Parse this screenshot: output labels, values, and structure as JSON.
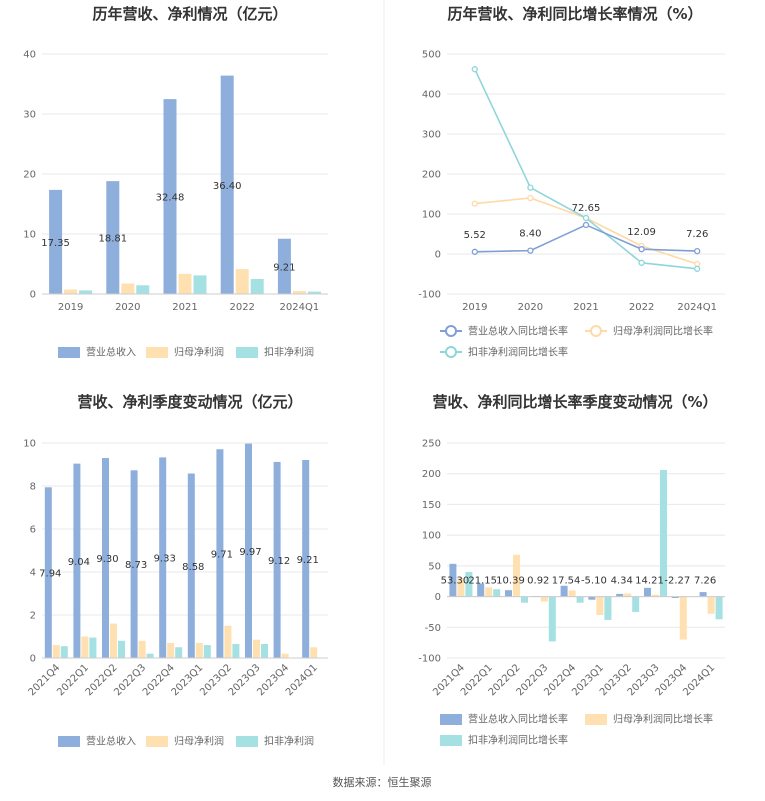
{
  "colors": {
    "revenue": "#8EAEDC",
    "net_profit": "#FFE0B0",
    "deducted_profit": "#A5E0E2",
    "line_revenue": "#7F9FD6",
    "line_net_profit": "#FFD9A6",
    "line_deducted": "#8ED6DC",
    "grid": "#E8E8E8",
    "divider": "#E6E6E6"
  },
  "source": "数据来源：恒生聚源",
  "chart_data": [
    {
      "type": "bar",
      "title": "历年营收、净利情况（亿元）",
      "categories": [
        "2019",
        "2020",
        "2021",
        "2022",
        "2024Q1"
      ],
      "ylim": [
        0,
        40
      ],
      "yticks": [
        0,
        10,
        20,
        30,
        40
      ],
      "series": [
        {
          "name": "营业总收入",
          "values": [
            17.35,
            18.81,
            32.48,
            36.4,
            9.21
          ],
          "labels": [
            "17.35",
            "18.81",
            "32.48",
            "36.40",
            "9.21"
          ]
        },
        {
          "name": "归母净利润",
          "values": [
            0.75,
            1.75,
            3.35,
            4.15,
            0.5
          ]
        },
        {
          "name": "扣非净利润",
          "values": [
            0.6,
            1.45,
            3.1,
            2.5,
            0.4
          ]
        }
      ],
      "legend": "bottom"
    },
    {
      "type": "line",
      "title": "历年营收、净利同比增长率情况（%）",
      "categories": [
        "2019",
        "2020",
        "2021",
        "2022",
        "2024Q1"
      ],
      "ylim": [
        -100,
        500
      ],
      "yticks": [
        -100,
        0,
        100,
        200,
        300,
        400,
        500
      ],
      "series": [
        {
          "name": "营业总收入同比增长率",
          "values": [
            5.52,
            8.4,
            72.65,
            12.09,
            7.26
          ],
          "labels": [
            "5.52",
            "8.40",
            "72.65",
            "12.09",
            "7.26"
          ]
        },
        {
          "name": "归母净利润同比增长率",
          "values": [
            126,
            140,
            90,
            20,
            -25
          ]
        },
        {
          "name": "扣非净利润同比增长率",
          "values": [
            462,
            166,
            90,
            -22,
            -37
          ]
        }
      ],
      "legend": "bottom"
    },
    {
      "type": "bar",
      "title": "营收、净利季度变动情况（亿元）",
      "categories": [
        "2021Q4",
        "2022Q1",
        "2022Q2",
        "2022Q3",
        "2022Q4",
        "2023Q1",
        "2023Q2",
        "2023Q3",
        "2023Q4",
        "2024Q1"
      ],
      "ylim": [
        0,
        10
      ],
      "yticks": [
        0,
        2,
        4,
        6,
        8,
        10
      ],
      "series": [
        {
          "name": "营业总收入",
          "values": [
            7.94,
            9.04,
            9.3,
            8.73,
            9.33,
            8.58,
            9.71,
            9.97,
            9.12,
            9.21
          ],
          "labels": [
            "7.94",
            "9.04",
            "9.30",
            "8.73",
            "9.33",
            "8.58",
            "9.71",
            "9.97",
            "9.12",
            "9.21"
          ]
        },
        {
          "name": "归母净利润",
          "values": [
            0.6,
            1.0,
            1.6,
            0.8,
            0.7,
            0.7,
            1.5,
            0.85,
            0.2,
            0.5
          ]
        },
        {
          "name": "扣非净利润",
          "values": [
            0.55,
            0.95,
            0.8,
            0.2,
            0.5,
            0.6,
            0.65,
            0.65,
            0.0,
            0.0
          ]
        }
      ],
      "legend": "bottom"
    },
    {
      "type": "bar",
      "title": "营收、净利同比增长率季度变动情况（%）",
      "categories": [
        "2021Q4",
        "2022Q1",
        "2022Q2",
        "2022Q3",
        "2022Q4",
        "2023Q1",
        "2023Q2",
        "2023Q3",
        "2023Q4",
        "2024Q1"
      ],
      "ylim": [
        -100,
        250
      ],
      "yticks": [
        -100,
        -50,
        0,
        50,
        100,
        150,
        200,
        250
      ],
      "series": [
        {
          "name": "营业总收入同比增长率",
          "values": [
            53.3,
            21.15,
            10.39,
            0.92,
            17.54,
            -5.1,
            4.34,
            14.21,
            -2.27,
            7.26
          ],
          "labels": [
            "53.30",
            "21.15",
            "10.39",
            "0.92",
            "17.54",
            "-5.10",
            "4.34",
            "14.21",
            "-2.27",
            "7.26"
          ]
        },
        {
          "name": "归母净利润同比增长率",
          "values": [
            30,
            15,
            68,
            -8,
            10,
            -30,
            5,
            3,
            -70,
            -28
          ]
        },
        {
          "name": "扣非净利润同比增长率",
          "values": [
            40,
            12,
            -10,
            -73,
            -10,
            -38,
            -25,
            206,
            0,
            -37
          ]
        }
      ],
      "legend": "bottom"
    }
  ]
}
